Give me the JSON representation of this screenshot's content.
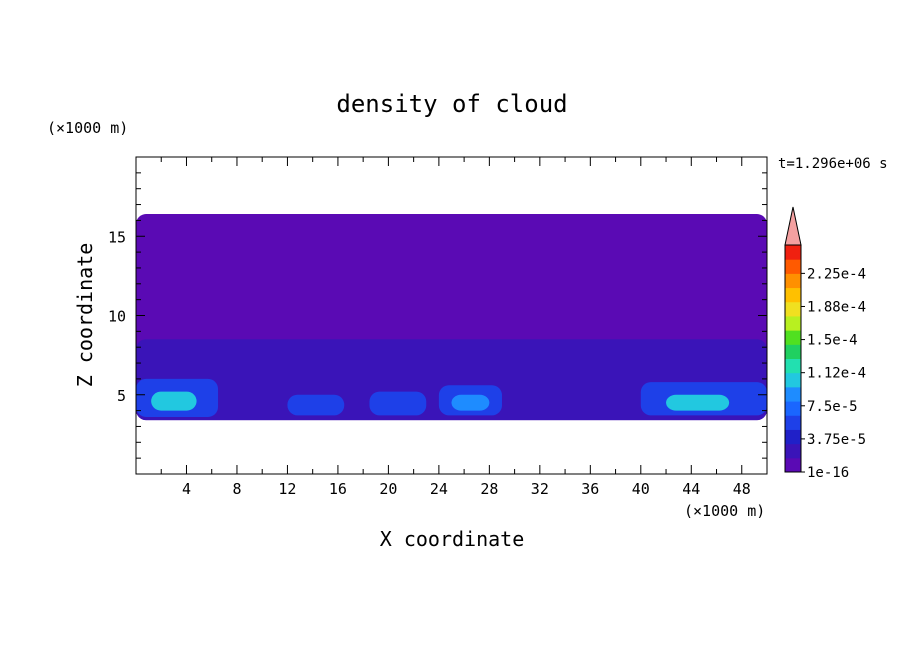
{
  "chart_data": {
    "type": "heatmap",
    "title": "density of cloud",
    "time_label": "t=1.296e+06 s",
    "xlabel": "X coordinate",
    "ylabel": "Z coordinate",
    "x_unit": "(×1000 m)",
    "y_unit": "(×1000 m)",
    "xlim": [
      0,
      50
    ],
    "ylim": [
      0,
      20
    ],
    "x_ticks": [
      4,
      8,
      12,
      16,
      20,
      24,
      28,
      32,
      36,
      40,
      44,
      48
    ],
    "y_ticks": [
      5,
      10,
      15
    ],
    "colorbar": {
      "levels": [
        1e-16,
        3.75e-05,
        7.5e-05,
        0.000112,
        0.00015,
        0.000188,
        0.000225
      ],
      "labels": [
        "1e-16",
        "3.75e-5",
        "7.5e-5",
        "1.12e-4",
        "1.5e-4",
        "1.88e-4",
        "2.25e-4"
      ],
      "colors": [
        "#5a0ab4",
        "#3a14b8",
        "#2020c8",
        "#1e40e8",
        "#1a66ff",
        "#1e8cff",
        "#22c8e0",
        "#22e0b0",
        "#20d060",
        "#50e020",
        "#b8f020",
        "#f0e020",
        "#ffc000",
        "#ff9000",
        "#ff5a00",
        "#f02010"
      ],
      "extend_color": "#f4a0a0"
    },
    "regions": [
      {
        "level": 0,
        "x": [
          0,
          50
        ],
        "z": [
          3.4,
          16.4
        ]
      },
      {
        "level": 1,
        "x": [
          0,
          50
        ],
        "z": [
          3.4,
          8.5
        ]
      },
      {
        "level": 3,
        "x": [
          0,
          6.5
        ],
        "z": [
          3.6,
          6.0
        ]
      },
      {
        "level": 6,
        "x": [
          1.2,
          4.8
        ],
        "z": [
          4.0,
          5.2
        ]
      },
      {
        "level": 3,
        "x": [
          12,
          16.5
        ],
        "z": [
          3.7,
          5.0
        ]
      },
      {
        "level": 3,
        "x": [
          18.5,
          23
        ],
        "z": [
          3.7,
          5.2
        ]
      },
      {
        "level": 3,
        "x": [
          24,
          29
        ],
        "z": [
          3.7,
          5.6
        ]
      },
      {
        "level": 5,
        "x": [
          25,
          28
        ],
        "z": [
          4.0,
          5.0
        ]
      },
      {
        "level": 3,
        "x": [
          40,
          50
        ],
        "z": [
          3.7,
          5.8
        ]
      },
      {
        "level": 6,
        "x": [
          42,
          47
        ],
        "z": [
          4.0,
          5.0
        ]
      }
    ]
  }
}
